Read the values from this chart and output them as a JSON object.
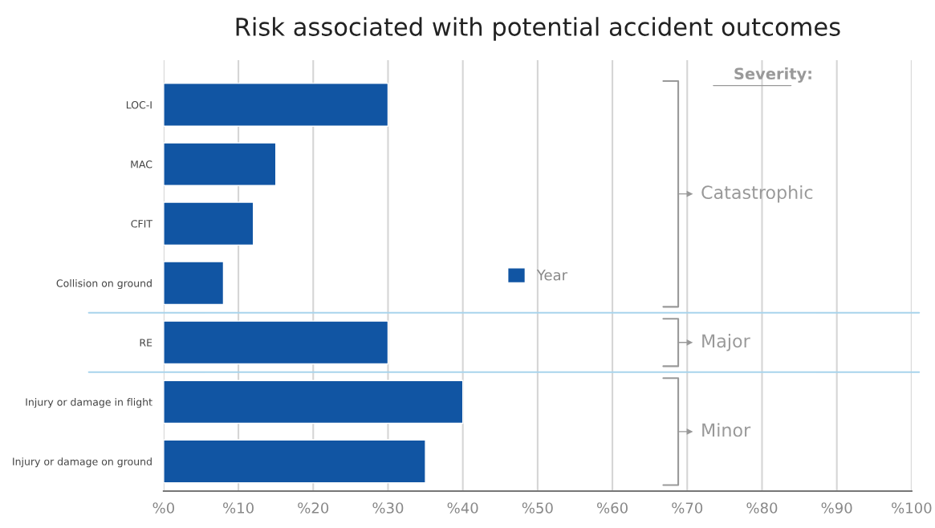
{
  "chart_data": {
    "type": "bar",
    "orientation": "horizontal",
    "title": "Risk associated with potential accident outcomes",
    "categories": [
      "LOC-I",
      "MAC",
      "CFIT",
      "Collision on ground",
      "RE",
      "Injury or damage in flight",
      "Injury or damage on ground"
    ],
    "series": [
      {
        "name": "Year",
        "color": "#1155a3",
        "values": [
          30,
          15,
          12,
          8,
          30,
          40,
          35
        ]
      }
    ],
    "xlim": [
      0,
      100
    ],
    "xticks": [
      {
        "value": 0,
        "label": "%0"
      },
      {
        "value": 10,
        "label": "%10"
      },
      {
        "value": 20,
        "label": "%20"
      },
      {
        "value": 30,
        "label": "%30"
      },
      {
        "value": 40,
        "label": "%40"
      },
      {
        "value": 50,
        "label": "%50"
      },
      {
        "value": 60,
        "label": "%60"
      },
      {
        "value": 70,
        "label": "%70"
      },
      {
        "value": 80,
        "label": "%80"
      },
      {
        "value": 90,
        "label": "%90"
      },
      {
        "value": 100,
        "label": "%100"
      }
    ],
    "grid": "x",
    "legend": "center",
    "annotations": [
      "Severity:",
      "Catastrophic",
      "Major",
      "Minor"
    ]
  }
}
